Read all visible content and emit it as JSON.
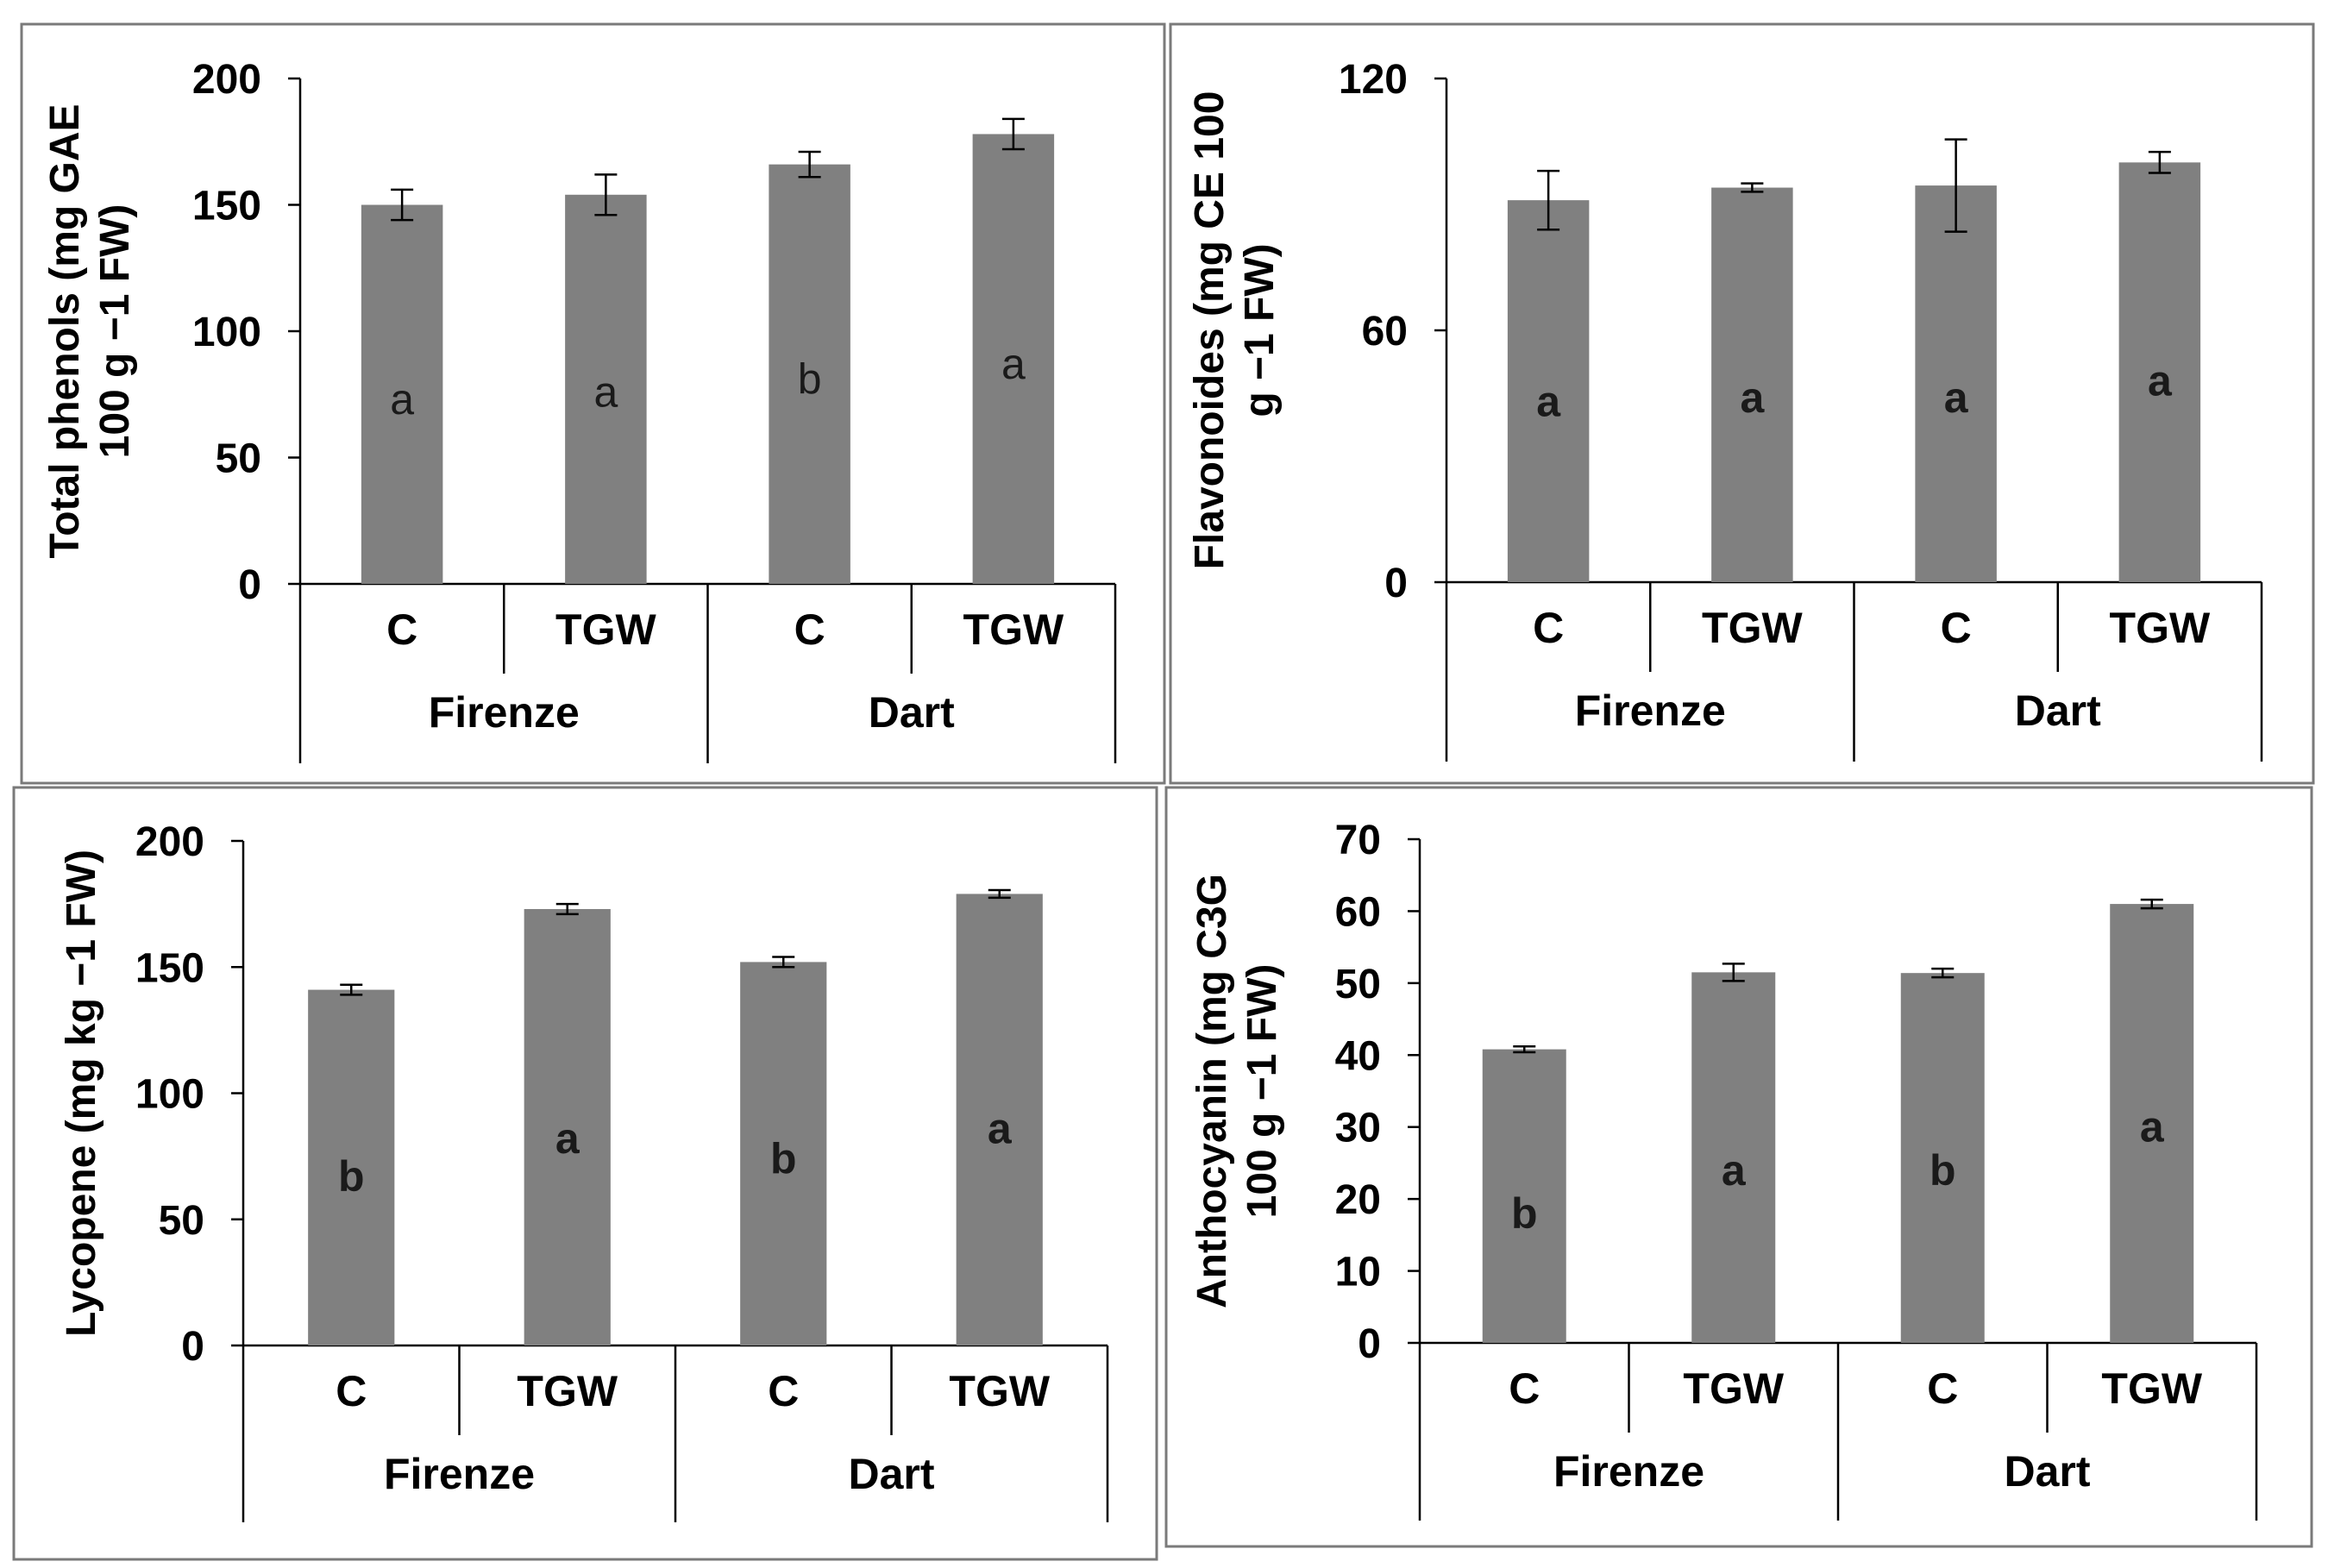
{
  "chart_data": [
    {
      "id": "total-phenols",
      "type": "bar",
      "categories": [
        "C",
        "TGW",
        "C",
        "TGW"
      ],
      "groups": [
        {
          "name": "Firenze",
          "span": [
            0,
            1
          ]
        },
        {
          "name": "Dart",
          "span": [
            2,
            3
          ]
        }
      ],
      "values": [
        150,
        154,
        166,
        178
      ],
      "errors": [
        6,
        8,
        5,
        6
      ],
      "letters": [
        "a",
        "a",
        "b",
        "a"
      ],
      "letter_positions": [
        73,
        76,
        81,
        87
      ],
      "bold_letters": false,
      "ylabel_lines": [
        "Total phenols  (mg GAE",
        "100 g −1 FW)"
      ],
      "ylim": [
        0,
        200
      ],
      "yticks": [
        0,
        50,
        100,
        150,
        200
      ],
      "bar_color": "#808080"
    },
    {
      "id": "flavonoides",
      "type": "bar",
      "categories": [
        "C",
        "TGW",
        "C",
        "TGW"
      ],
      "groups": [
        {
          "name": "Firenze",
          "span": [
            0,
            1
          ]
        },
        {
          "name": "Dart",
          "span": [
            2,
            3
          ]
        }
      ],
      "values": [
        91,
        94,
        94.5,
        100
      ],
      "errors": [
        7,
        1,
        11,
        2.5
      ],
      "letters": [
        "a",
        "a",
        "a",
        "a"
      ],
      "letter_positions": [
        43,
        44,
        44,
        48
      ],
      "bold_letters": true,
      "ylabel_lines": [
        "Flavonoides  (mg CE 100",
        "g −1 FW)"
      ],
      "ylim": [
        0,
        120
      ],
      "yticks": [
        0,
        60,
        120
      ],
      "bar_color": "#808080"
    },
    {
      "id": "lycopene",
      "type": "bar",
      "categories": [
        "C",
        "TGW",
        "C",
        "TGW"
      ],
      "groups": [
        {
          "name": "Firenze",
          "span": [
            0,
            1
          ]
        },
        {
          "name": "Dart",
          "span": [
            2,
            3
          ]
        }
      ],
      "values": [
        141,
        173,
        152,
        179
      ],
      "errors": [
        2,
        2,
        2,
        1.5
      ],
      "letters": [
        "b",
        "a",
        "b",
        "a"
      ],
      "letter_positions": [
        67,
        82,
        74,
        86
      ],
      "bold_letters": true,
      "ylabel_lines": [
        "Lycopene  (mg kg −1 FW)"
      ],
      "ylim": [
        0,
        200
      ],
      "yticks": [
        0,
        50,
        100,
        150,
        200
      ],
      "bar_color": "#808080"
    },
    {
      "id": "anthocyanin",
      "type": "bar",
      "categories": [
        "C",
        "TGW",
        "C",
        "TGW"
      ],
      "groups": [
        {
          "name": "Firenze",
          "span": [
            0,
            1
          ]
        },
        {
          "name": "Dart",
          "span": [
            2,
            3
          ]
        }
      ],
      "values": [
        40.8,
        51.5,
        51.4,
        61
      ],
      "errors": [
        0.4,
        1.2,
        0.6,
        0.6
      ],
      "letters": [
        "b",
        "a",
        "b",
        "a"
      ],
      "letter_positions": [
        18,
        24,
        24,
        30
      ],
      "bold_letters": true,
      "ylabel_lines": [
        "Anthocyanin  (mg C3G",
        "100 g −1 FW)"
      ],
      "ylim": [
        0,
        70
      ],
      "yticks": [
        0,
        10,
        20,
        30,
        40,
        50,
        60,
        70
      ],
      "bar_color": "#808080"
    }
  ]
}
